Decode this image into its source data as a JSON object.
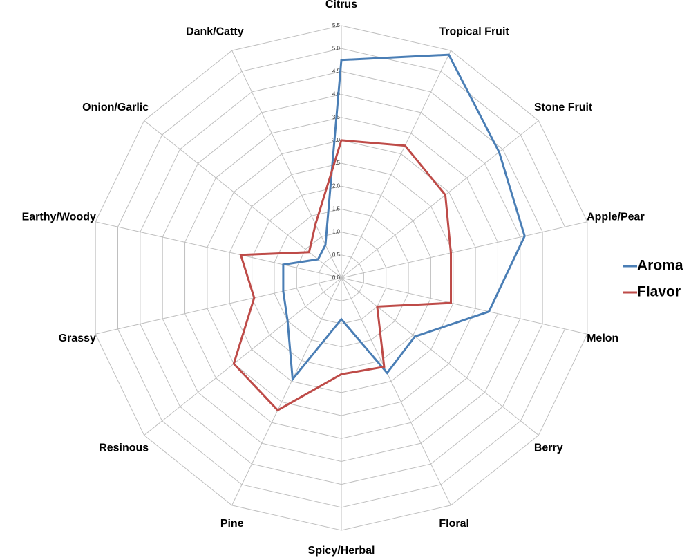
{
  "chart_data": {
    "type": "radar",
    "categories": [
      "Citrus",
      "Tropical Fruit",
      "Stone Fruit",
      "Apple/Pear",
      "Melon",
      "Berry",
      "Floral",
      "Spicy/Herbal",
      "Pine",
      "Resinous",
      "Grassy",
      "Earthy/Woody",
      "Onion/Garlic",
      "Dank/Catty"
    ],
    "series": [
      {
        "name": "Aroma",
        "color": "#4a7eb5",
        "values": [
          4.75,
          5.4,
          4.4,
          4.1,
          3.3,
          2.05,
          2.3,
          0.9,
          2.45,
          1.5,
          1.3,
          1.3,
          0.65,
          0.8
        ]
      },
      {
        "name": "Flavor",
        "color": "#be4b48",
        "values": [
          3.0,
          3.2,
          2.9,
          2.45,
          2.45,
          1.0,
          2.15,
          2.1,
          3.2,
          3.0,
          1.95,
          2.25,
          0.9,
          1.3
        ]
      }
    ],
    "ylim": [
      0,
      5.5
    ],
    "yticks": [
      {
        "value": 0,
        "label": "0.0"
      },
      0.5,
      {
        "value": 1,
        "label": "1.0"
      },
      1.5,
      {
        "value": 2,
        "label": "2.0"
      },
      2.5,
      {
        "value": 3,
        "label": "3.0"
      },
      3.5,
      {
        "value": 4,
        "label": "4.0"
      },
      4.5,
      {
        "value": 5,
        "label": "5.0"
      },
      5.5
    ],
    "grid": true,
    "legend": "right"
  }
}
